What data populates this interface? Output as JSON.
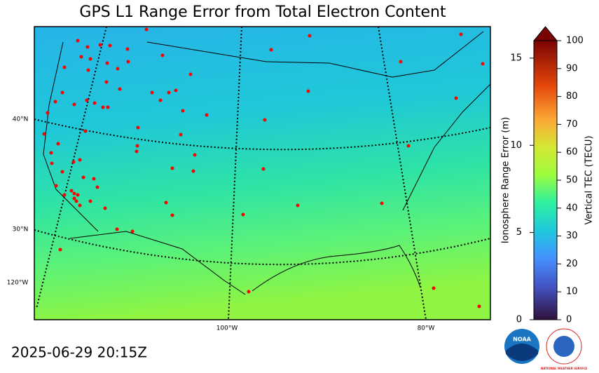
{
  "title": "GPS L1 Range Error from Total Electron Content",
  "timestamp": "2025-06-29 20:15Z",
  "map": {
    "lat_labels": [
      "40°N",
      "30°N"
    ],
    "lon_labels": [
      "120°W",
      "100°W",
      "80°W"
    ]
  },
  "colorbar": {
    "left_label": "Ionosphere Range Error (m)",
    "left_lim": [
      0,
      16
    ],
    "left_ticks": [
      0,
      5,
      10,
      15
    ],
    "right_label": "Vertical TEC (TECU)",
    "right_lim": [
      0,
      100
    ],
    "right_ticks": [
      0,
      10,
      20,
      30,
      40,
      50,
      60,
      70,
      80,
      90,
      100
    ]
  },
  "logos": {
    "noaa": "NOAA",
    "nws": "NATIONAL WEATHER SERVICE"
  }
}
